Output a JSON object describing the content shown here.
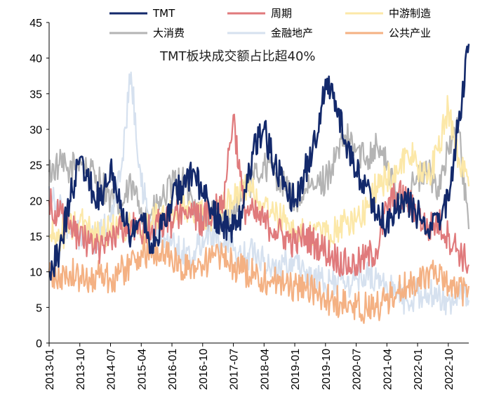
{
  "chart_data": {
    "type": "line",
    "title": "",
    "xlabel": "",
    "ylabel": "",
    "ylim": [
      0,
      45
    ],
    "yticks": [
      0,
      5,
      10,
      15,
      20,
      25,
      30,
      35,
      40,
      45
    ],
    "x_start": "2013-01",
    "x_end": "2023-04",
    "xticks": [
      "2013-01",
      "2013-10",
      "2014-07",
      "2015-04",
      "2016-01",
      "2016-10",
      "2017-07",
      "2018-04",
      "2019-01",
      "2019-10",
      "2020-07",
      "2021-04",
      "2022-01",
      "2022-10"
    ],
    "annotation": "TMT板块成交额占比超40%",
    "legend_position": "top",
    "grid": false,
    "series": [
      {
        "name": "大消费",
        "color": "#b4b4b4",
        "x": [
          "2013-01",
          "2013-04",
          "2013-07",
          "2013-10",
          "2014-01",
          "2014-04",
          "2014-07",
          "2014-10",
          "2015-01",
          "2015-04",
          "2015-07",
          "2015-10",
          "2016-01",
          "2016-04",
          "2016-07",
          "2016-10",
          "2017-01",
          "2017-04",
          "2017-07",
          "2017-10",
          "2018-01",
          "2018-04",
          "2018-07",
          "2018-10",
          "2019-01",
          "2019-04",
          "2019-07",
          "2019-10",
          "2020-01",
          "2020-04",
          "2020-07",
          "2020-10",
          "2021-01",
          "2021-04",
          "2021-07",
          "2021-10",
          "2022-01",
          "2022-04",
          "2022-07",
          "2022-10",
          "2023-01",
          "2023-04"
        ],
        "values": [
          24,
          25,
          24,
          26,
          24,
          23,
          20,
          19,
          22,
          19,
          18,
          20,
          22,
          23,
          20,
          17,
          18,
          17,
          18,
          22,
          23,
          25,
          24,
          22,
          20,
          21,
          22,
          23,
          26,
          29,
          27,
          26,
          28,
          25,
          20,
          21,
          23,
          24,
          22,
          27,
          30,
          16
        ]
      },
      {
        "name": "金融地产",
        "color": "#d6e1ef",
        "x": [
          "2013-01",
          "2013-04",
          "2013-07",
          "2013-10",
          "2014-01",
          "2014-04",
          "2014-07",
          "2014-10",
          "2015-01",
          "2015-04",
          "2015-07",
          "2015-10",
          "2016-01",
          "2016-04",
          "2016-07",
          "2016-10",
          "2017-01",
          "2017-04",
          "2017-07",
          "2017-10",
          "2018-01",
          "2018-04",
          "2018-07",
          "2018-10",
          "2019-01",
          "2019-04",
          "2019-07",
          "2019-10",
          "2020-01",
          "2020-04",
          "2020-07",
          "2020-10",
          "2021-01",
          "2021-04",
          "2021-07",
          "2021-10",
          "2022-01",
          "2022-04",
          "2022-07",
          "2022-10",
          "2023-01",
          "2023-04"
        ],
        "values": [
          22,
          19,
          16,
          15,
          14,
          15,
          17,
          24,
          38,
          22,
          17,
          15,
          14,
          13,
          12,
          15,
          16,
          14,
          13,
          12,
          13,
          12,
          10,
          11,
          12,
          10,
          9,
          8,
          9,
          8,
          9,
          10,
          9,
          8,
          7,
          6,
          7,
          7,
          6,
          6,
          7,
          6
        ]
      },
      {
        "name": "中游制造",
        "color": "#fce8a8",
        "x": [
          "2013-01",
          "2013-04",
          "2013-07",
          "2013-10",
          "2014-01",
          "2014-04",
          "2014-07",
          "2014-10",
          "2015-01",
          "2015-04",
          "2015-07",
          "2015-10",
          "2016-01",
          "2016-04",
          "2016-07",
          "2016-10",
          "2017-01",
          "2017-04",
          "2017-07",
          "2017-10",
          "2018-01",
          "2018-04",
          "2018-07",
          "2018-10",
          "2019-01",
          "2019-04",
          "2019-07",
          "2019-10",
          "2020-01",
          "2020-04",
          "2020-07",
          "2020-10",
          "2021-01",
          "2021-04",
          "2021-07",
          "2021-10",
          "2022-01",
          "2022-04",
          "2022-07",
          "2022-10",
          "2023-01",
          "2023-04"
        ],
        "values": [
          15,
          15,
          16,
          17,
          16,
          15,
          16,
          17,
          16,
          15,
          17,
          18,
          18,
          19,
          19,
          18,
          18,
          19,
          20,
          22,
          21,
          19,
          18,
          17,
          16,
          15,
          16,
          15,
          16,
          17,
          17,
          19,
          22,
          23,
          24,
          27,
          25,
          23,
          27,
          33,
          26,
          22
        ]
      },
      {
        "name": "公共产业",
        "color": "#f4b183",
        "x": [
          "2013-01",
          "2013-04",
          "2013-07",
          "2013-10",
          "2014-01",
          "2014-04",
          "2014-07",
          "2014-10",
          "2015-01",
          "2015-04",
          "2015-07",
          "2015-10",
          "2016-01",
          "2016-04",
          "2016-07",
          "2016-10",
          "2017-01",
          "2017-04",
          "2017-07",
          "2017-10",
          "2018-01",
          "2018-04",
          "2018-07",
          "2018-10",
          "2019-01",
          "2019-04",
          "2019-07",
          "2019-10",
          "2020-01",
          "2020-04",
          "2020-07",
          "2020-10",
          "2021-01",
          "2021-04",
          "2021-07",
          "2021-10",
          "2022-01",
          "2022-04",
          "2022-07",
          "2022-10",
          "2023-01",
          "2023-04"
        ],
        "values": [
          10,
          9,
          10,
          9,
          9,
          10,
          9,
          10,
          11,
          13,
          12,
          13,
          12,
          10,
          11,
          11,
          12,
          12,
          11,
          10,
          10,
          9,
          9,
          8,
          8,
          8,
          7,
          6,
          6,
          5,
          5,
          5,
          5,
          6,
          7,
          8,
          9,
          10,
          9,
          8,
          7,
          8
        ]
      },
      {
        "name": "周期",
        "color": "#e07a7c",
        "x": [
          "2013-01",
          "2013-04",
          "2013-07",
          "2013-10",
          "2014-01",
          "2014-04",
          "2014-07",
          "2014-10",
          "2015-01",
          "2015-04",
          "2015-07",
          "2015-10",
          "2016-01",
          "2016-04",
          "2016-07",
          "2016-10",
          "2017-01",
          "2017-04",
          "2017-07",
          "2017-10",
          "2018-01",
          "2018-04",
          "2018-07",
          "2018-10",
          "2019-01",
          "2019-04",
          "2019-07",
          "2019-10",
          "2020-01",
          "2020-04",
          "2020-07",
          "2020-10",
          "2021-01",
          "2021-04",
          "2021-07",
          "2021-10",
          "2022-01",
          "2022-04",
          "2022-07",
          "2022-10",
          "2023-01",
          "2023-04"
        ],
        "values": [
          20,
          18,
          16,
          15,
          14,
          13,
          15,
          16,
          17,
          15,
          16,
          17,
          17,
          19,
          18,
          17,
          19,
          20,
          32,
          19,
          18,
          17,
          16,
          15,
          14,
          15,
          14,
          13,
          12,
          11,
          11,
          12,
          13,
          19,
          21,
          20,
          18,
          16,
          17,
          15,
          13,
          11
        ]
      },
      {
        "name": "TMT",
        "color": "#13296b",
        "x": [
          "2013-01",
          "2013-04",
          "2013-07",
          "2013-10",
          "2014-01",
          "2014-04",
          "2014-07",
          "2014-10",
          "2015-01",
          "2015-04",
          "2015-07",
          "2015-10",
          "2016-01",
          "2016-04",
          "2016-07",
          "2016-10",
          "2017-01",
          "2017-04",
          "2017-07",
          "2017-10",
          "2018-01",
          "2018-04",
          "2018-07",
          "2018-10",
          "2019-01",
          "2019-04",
          "2019-07",
          "2019-10",
          "2020-01",
          "2020-04",
          "2020-07",
          "2020-10",
          "2021-01",
          "2021-04",
          "2021-07",
          "2021-10",
          "2022-01",
          "2022-04",
          "2022-07",
          "2022-10",
          "2023-01",
          "2023-04"
        ],
        "values": [
          10,
          13,
          20,
          26,
          22,
          20,
          25,
          20,
          15,
          18,
          14,
          16,
          20,
          22,
          24,
          21,
          18,
          17,
          16,
          19,
          28,
          30,
          25,
          22,
          20,
          24,
          28,
          37,
          34,
          28,
          24,
          22,
          18,
          17,
          19,
          20,
          18,
          16,
          17,
          20,
          31,
          42
        ]
      }
    ]
  },
  "legend": [
    {
      "label": "TMT",
      "color": "#13296b"
    },
    {
      "label": "周期",
      "color": "#e07a7c"
    },
    {
      "label": "中游制造",
      "color": "#fce8a8"
    },
    {
      "label": "大消费",
      "color": "#b4b4b4"
    },
    {
      "label": "金融地产",
      "color": "#d6e1ef"
    },
    {
      "label": "公共产业",
      "color": "#f4b183"
    }
  ]
}
